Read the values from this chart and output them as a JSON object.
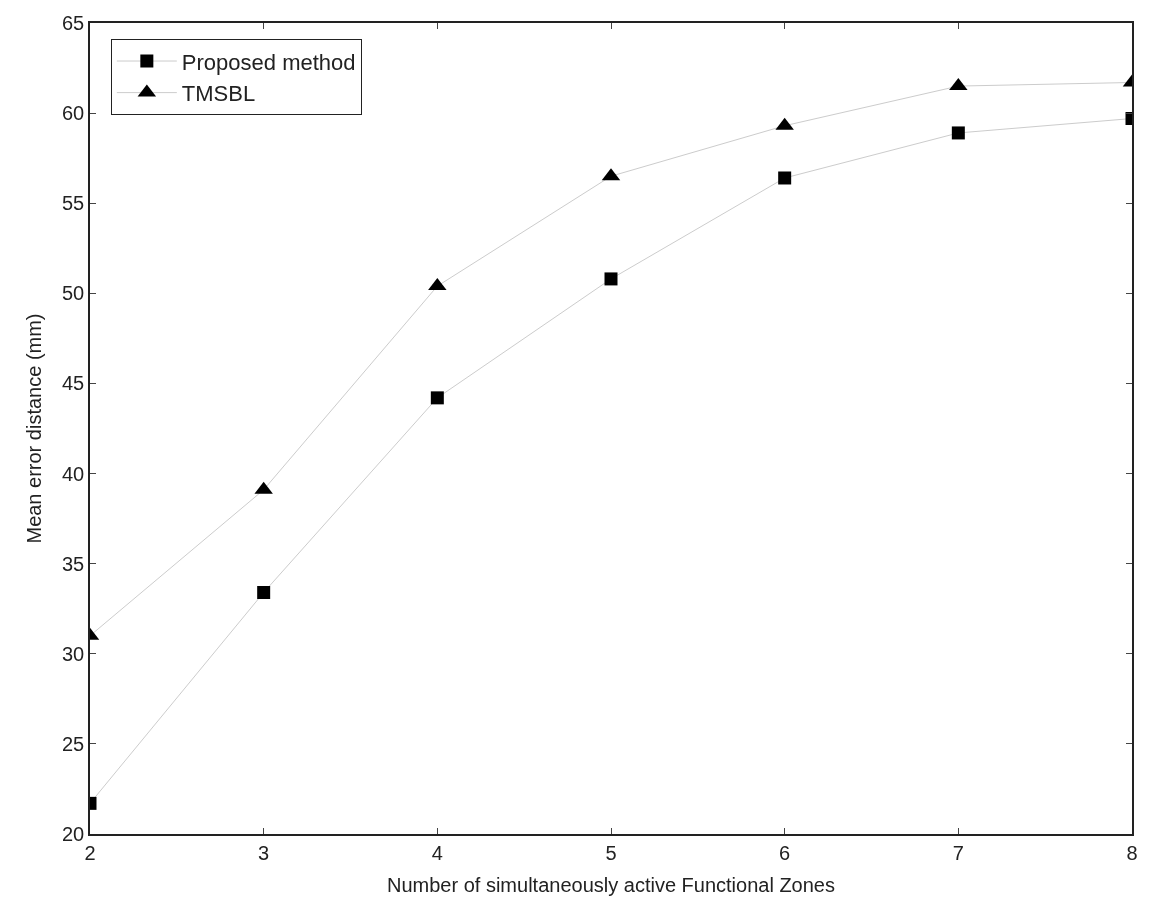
{
  "chart_data": {
    "type": "line",
    "xlabel": "Number of simultaneously active Functional Zones",
    "ylabel": "Mean error distance (mm)",
    "x": [
      2,
      3,
      4,
      5,
      6,
      7,
      8
    ],
    "series": [
      {
        "name": "Proposed method",
        "color": "#000000",
        "marker": "square",
        "values": [
          21.7,
          33.4,
          44.2,
          50.8,
          56.4,
          58.9,
          59.7
        ]
      },
      {
        "name": "TMSBL",
        "color": "#000000",
        "marker": "triangle",
        "values": [
          31.0,
          39.1,
          50.4,
          56.5,
          59.3,
          61.5,
          61.7
        ]
      }
    ],
    "xlim": [
      2,
      8
    ],
    "xticks": [
      2,
      3,
      4,
      5,
      6,
      7,
      8
    ],
    "ylim": [
      20,
      65
    ],
    "yticks": [
      20,
      25,
      30,
      35,
      40,
      45,
      50,
      55,
      60,
      65
    ],
    "grid": false,
    "legend": "top left",
    "line_style": "solid"
  }
}
